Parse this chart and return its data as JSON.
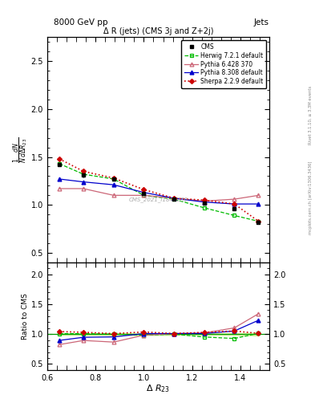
{
  "title": "Δ R (jets) (CMS 3j and Z+2j)",
  "xlabel": "Δ R_{23}",
  "ylabel_main": "$\\frac{1}{N}\\frac{dN}{d\\Delta R_{23}}$",
  "ylabel_ratio": "Ratio to CMS",
  "header_left": "8000 GeV pp",
  "header_right": "Jets",
  "right_label_top": "Rivet 3.1.10, ≥ 3.3M events",
  "right_label_bot": "mcplots.cern.ch [arXiv:1306.3436]",
  "watermark": "CMS_2021_I1847230",
  "xlim": [
    0.6,
    1.52
  ],
  "ylim_main": [
    0.4,
    2.75
  ],
  "ylim_ratio": [
    0.4,
    2.2
  ],
  "yticks_main": [
    0.5,
    1.0,
    1.5,
    2.0,
    2.5
  ],
  "yticks_ratio": [
    0.5,
    1.0,
    1.5,
    2.0
  ],
  "x_cms": [
    0.65,
    0.75,
    0.875,
    1.0,
    1.125,
    1.25,
    1.375,
    1.475
  ],
  "y_cms": [
    1.42,
    1.31,
    1.27,
    1.12,
    1.06,
    1.02,
    0.96,
    0.82
  ],
  "y_cms_err": [
    0.02,
    0.02,
    0.02,
    0.02,
    0.015,
    0.015,
    0.015,
    0.02
  ],
  "x_herwig": [
    0.65,
    0.75,
    0.875,
    1.0,
    1.125,
    1.25,
    1.375,
    1.475
  ],
  "y_herwig": [
    1.43,
    1.32,
    1.27,
    1.1,
    1.06,
    0.97,
    0.89,
    0.83
  ],
  "x_pythia6": [
    0.65,
    0.75,
    0.875,
    1.0,
    1.125,
    1.25,
    1.375,
    1.475
  ],
  "y_pythia6": [
    1.17,
    1.17,
    1.1,
    1.1,
    1.07,
    1.04,
    1.06,
    1.1
  ],
  "x_pythia8": [
    0.65,
    0.75,
    0.875,
    1.0,
    1.125,
    1.25,
    1.375,
    1.475
  ],
  "y_pythia8": [
    1.27,
    1.24,
    1.21,
    1.13,
    1.07,
    1.03,
    1.01,
    1.01
  ],
  "x_sherpa": [
    0.65,
    0.75,
    0.875,
    1.0,
    1.125,
    1.25,
    1.375,
    1.475
  ],
  "y_sherpa": [
    1.48,
    1.35,
    1.28,
    1.16,
    1.07,
    1.05,
    1.01,
    0.83
  ],
  "cms_color": "#000000",
  "herwig_color": "#00bb00",
  "pythia6_color": "#cc6677",
  "pythia8_color": "#0000cc",
  "sherpa_color": "#cc0000",
  "cms_band_color": "#ccee88",
  "cms_band_alpha": 0.7
}
